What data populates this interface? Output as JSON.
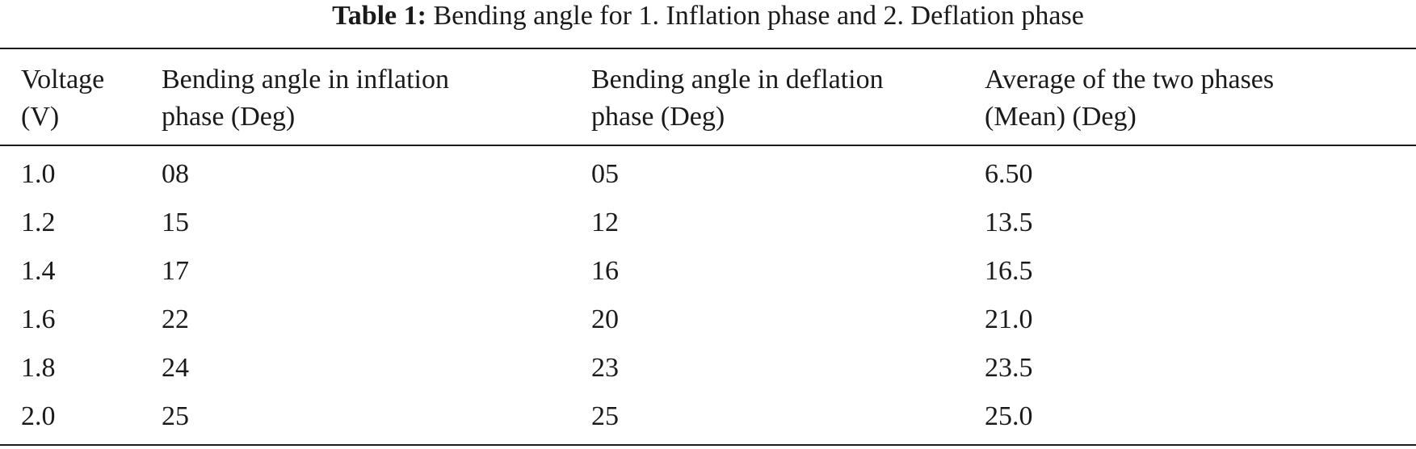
{
  "caption": {
    "label": "Table 1:",
    "text": "Bending angle for 1. Inflation phase and 2. Deflation phase"
  },
  "table": {
    "headers": [
      [
        "Voltage",
        "(V)"
      ],
      [
        "Bending angle in inflation",
        "phase (Deg)"
      ],
      [
        "Bending angle in deflation",
        "phase (Deg)"
      ],
      [
        "Average of the two phases",
        "(Mean) (Deg)"
      ]
    ],
    "rows": [
      [
        "1.0",
        "08",
        "05",
        "6.50"
      ],
      [
        "1.2",
        "15",
        "12",
        "13.5"
      ],
      [
        "1.4",
        "17",
        "16",
        "16.5"
      ],
      [
        "1.6",
        "22",
        "20",
        "21.0"
      ],
      [
        "1.8",
        "24",
        "23",
        "23.5"
      ],
      [
        "2.0",
        "25",
        "25",
        "25.0"
      ]
    ]
  }
}
